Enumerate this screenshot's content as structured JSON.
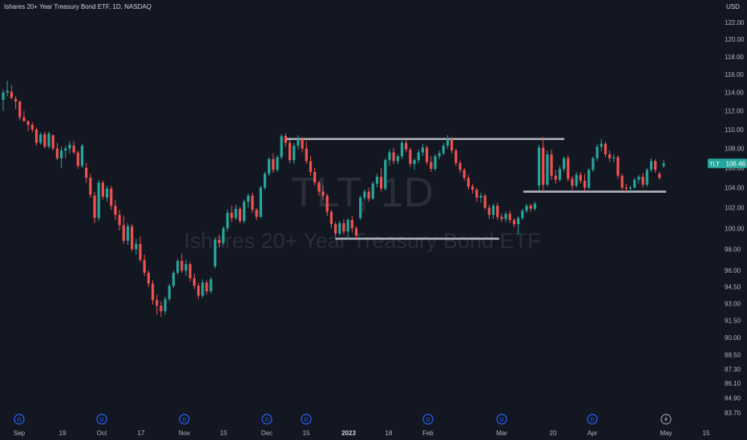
{
  "header": {
    "title": "Ishares 20+ Year Treasury Bond ETF, 1D, NASDAQ",
    "currency": "USD"
  },
  "watermark": {
    "symbol": "TLT, 1D",
    "name": "Ishares 20+ Year Treasury Bond ETF"
  },
  "price_badge": {
    "symbol": "TLT",
    "value": "106.46",
    "color": "#26a69a"
  },
  "colors": {
    "up": "#26a69a",
    "down": "#ef5350",
    "background": "#131722",
    "line": "#b2b5be",
    "event": "#2962ff"
  },
  "event_marker_label": "D",
  "chart_data": {
    "type": "candlestick",
    "y_scale": "log",
    "ylim": [
      83.3,
      123.5
    ],
    "y_ticks": [
      "122.00",
      "120.00",
      "118.00",
      "116.00",
      "114.00",
      "112.00",
      "110.00",
      "108.00",
      "106.00",
      "104.00",
      "102.00",
      "100.00",
      "98.00",
      "96.00",
      "94.50",
      "93.00",
      "91.50",
      "90.00",
      "88.50",
      "87.30",
      "86.10",
      "84.90",
      "83.70"
    ],
    "x_ticks": [
      "Sep",
      "19",
      "Oct",
      "17",
      "Nov",
      "15",
      "Dec",
      "15",
      "2023",
      "18",
      "Feb",
      "Mar",
      "20",
      "Apr",
      "May",
      "15"
    ],
    "x_ticks_bold": [
      "2023"
    ],
    "last_price": 106.46,
    "resistance_lines": [
      {
        "from": "2022-12-08",
        "to": "2023-03-24",
        "price": 109.0
      },
      {
        "from": "2022-12-28",
        "to": "2023-02-28",
        "price": 99.0
      },
      {
        "from": "2023-03-09",
        "to": "2023-05-01",
        "price": 103.6
      }
    ],
    "dividend_dates": [
      "2022-09-01",
      "2022-10-03",
      "2022-11-01",
      "2022-12-01",
      "2022-12-15",
      "2023-02-01",
      "2023-03-01",
      "2023-04-03"
    ],
    "lightning_date": "2023-05-01",
    "candles": [
      [
        113.2,
        114.3,
        112.0,
        114.0
      ],
      [
        114.0,
        115.3,
        113.6,
        114.2
      ],
      [
        114.1,
        114.8,
        113.3,
        113.4
      ],
      [
        113.3,
        113.6,
        112.2,
        113.0
      ],
      [
        113.0,
        113.1,
        111.0,
        111.3
      ],
      [
        111.3,
        112.0,
        110.8,
        110.9
      ],
      [
        110.9,
        111.0,
        109.8,
        110.5
      ],
      [
        110.5,
        110.8,
        109.7,
        110.0
      ],
      [
        110.0,
        110.2,
        108.3,
        108.6
      ],
      [
        108.6,
        109.7,
        108.4,
        109.5
      ],
      [
        109.5,
        109.8,
        108.0,
        108.2
      ],
      [
        108.2,
        109.8,
        108.0,
        109.6
      ],
      [
        109.4,
        109.5,
        107.8,
        108.0
      ],
      [
        108.0,
        108.6,
        106.8,
        107.0
      ],
      [
        107.0,
        108.2,
        106.0,
        107.8
      ],
      [
        107.8,
        108.3,
        107.0,
        108.0
      ],
      [
        108.0,
        108.8,
        107.5,
        108.4
      ],
      [
        108.3,
        108.8,
        107.4,
        107.6
      ],
      [
        107.6,
        107.8,
        105.9,
        106.2
      ],
      [
        106.2,
        108.5,
        106.0,
        108.3
      ],
      [
        106.0,
        106.5,
        104.5,
        105.0
      ],
      [
        105.0,
        105.4,
        103.0,
        103.3
      ],
      [
        103.2,
        103.6,
        100.5,
        101.0
      ],
      [
        101.0,
        104.8,
        100.7,
        104.5
      ],
      [
        104.5,
        104.7,
        102.8,
        103.1
      ],
      [
        103.0,
        104.2,
        102.6,
        103.9
      ],
      [
        103.9,
        104.2,
        101.8,
        102.2
      ],
      [
        102.2,
        102.8,
        100.8,
        101.3
      ],
      [
        101.3,
        101.8,
        99.8,
        100.3
      ],
      [
        100.3,
        101.2,
        98.5,
        98.8
      ],
      [
        98.8,
        100.5,
        98.4,
        100.2
      ],
      [
        100.2,
        100.4,
        97.8,
        98.0
      ],
      [
        98.0,
        99.0,
        97.5,
        98.5
      ],
      [
        98.5,
        99.2,
        96.8,
        97.0
      ],
      [
        97.0,
        97.5,
        95.5,
        95.8
      ],
      [
        95.8,
        96.0,
        94.5,
        94.8
      ],
      [
        94.8,
        95.1,
        92.9,
        93.3
      ],
      [
        93.3,
        93.8,
        92.0,
        92.8
      ],
      [
        92.8,
        93.2,
        91.8,
        92.3
      ],
      [
        92.3,
        93.6,
        92.0,
        93.4
      ],
      [
        93.4,
        94.8,
        93.2,
        94.6
      ],
      [
        94.6,
        96.0,
        94.4,
        95.8
      ],
      [
        95.8,
        97.1,
        95.6,
        96.9
      ],
      [
        96.9,
        97.6,
        95.8,
        96.0
      ],
      [
        96.0,
        97.0,
        95.5,
        96.6
      ],
      [
        96.6,
        96.8,
        95.0,
        95.3
      ],
      [
        95.3,
        95.7,
        94.3,
        94.6
      ],
      [
        94.6,
        94.9,
        93.4,
        93.7
      ],
      [
        93.7,
        95.2,
        93.5,
        94.9
      ],
      [
        94.9,
        95.1,
        93.8,
        94.1
      ],
      [
        94.1,
        95.4,
        93.9,
        95.2
      ],
      [
        96.4,
        99.1,
        96.2,
        98.9
      ],
      [
        98.9,
        99.4,
        98.2,
        98.6
      ],
      [
        98.6,
        100.2,
        98.4,
        100.0
      ],
      [
        100.0,
        101.8,
        99.7,
        101.5
      ],
      [
        101.5,
        102.2,
        100.6,
        101.0
      ],
      [
        101.0,
        102.3,
        100.8,
        101.9
      ],
      [
        101.9,
        102.1,
        100.5,
        100.7
      ],
      [
        100.7,
        102.8,
        100.5,
        102.6
      ],
      [
        102.6,
        103.4,
        102.0,
        103.2
      ],
      [
        103.2,
        103.5,
        101.5,
        101.8
      ],
      [
        101.8,
        102.0,
        100.8,
        101.1
      ],
      [
        101.1,
        104.2,
        101.0,
        104.0
      ],
      [
        104.0,
        105.6,
        103.8,
        105.4
      ],
      [
        105.4,
        107.1,
        105.2,
        106.9
      ],
      [
        106.9,
        107.5,
        105.5,
        105.8
      ],
      [
        105.8,
        107.3,
        105.6,
        107.1
      ],
      [
        107.1,
        109.5,
        106.9,
        109.3
      ],
      [
        109.3,
        109.6,
        108.2,
        108.6
      ],
      [
        108.6,
        108.9,
        106.5,
        106.8
      ],
      [
        106.8,
        108.6,
        106.4,
        108.3
      ],
      [
        108.3,
        109.4,
        107.9,
        109.0
      ],
      [
        109.0,
        109.2,
        107.6,
        108.0
      ],
      [
        108.0,
        108.8,
        106.4,
        106.7
      ],
      [
        106.7,
        107.2,
        105.2,
        105.6
      ],
      [
        105.6,
        106.0,
        104.2,
        104.5
      ],
      [
        104.5,
        104.7,
        103.2,
        103.6
      ],
      [
        103.6,
        104.2,
        102.8,
        103.2
      ],
      [
        103.2,
        103.4,
        101.2,
        101.6
      ],
      [
        101.6,
        101.8,
        100.0,
        100.4
      ],
      [
        100.4,
        100.6,
        99.2,
        99.5
      ],
      [
        99.5,
        100.7,
        99.3,
        100.5
      ],
      [
        100.5,
        100.9,
        99.4,
        99.7
      ],
      [
        99.7,
        101.0,
        99.0,
        100.8
      ],
      [
        100.8,
        101.2,
        99.6,
        100.0
      ],
      [
        100.0,
        100.2,
        99.0,
        99.3
      ],
      [
        101.0,
        103.2,
        100.8,
        103.0
      ],
      [
        103.0,
        103.8,
        102.7,
        103.6
      ],
      [
        103.6,
        104.0,
        102.6,
        102.9
      ],
      [
        102.9,
        104.6,
        102.8,
        104.4
      ],
      [
        104.4,
        105.4,
        104.0,
        105.1
      ],
      [
        105.1,
        106.0,
        103.6,
        103.9
      ],
      [
        103.9,
        107.0,
        103.7,
        106.8
      ],
      [
        106.8,
        107.9,
        106.2,
        107.6
      ],
      [
        107.6,
        108.1,
        106.4,
        106.7
      ],
      [
        106.7,
        107.4,
        106.4,
        107.2
      ],
      [
        107.2,
        108.8,
        106.9,
        108.6
      ],
      [
        108.6,
        108.9,
        107.6,
        107.9
      ],
      [
        107.9,
        108.1,
        106.1,
        106.4
      ],
      [
        106.4,
        107.0,
        105.8,
        106.8
      ],
      [
        106.8,
        107.9,
        106.5,
        107.6
      ],
      [
        107.6,
        108.5,
        107.2,
        108.1
      ],
      [
        108.1,
        108.3,
        106.3,
        106.6
      ],
      [
        106.6,
        107.2,
        105.6,
        105.9
      ],
      [
        105.9,
        107.4,
        105.7,
        107.2
      ],
      [
        107.2,
        107.8,
        106.9,
        107.5
      ],
      [
        107.5,
        108.6,
        107.3,
        108.3
      ],
      [
        108.3,
        109.4,
        108.0,
        109.0
      ],
      [
        109.0,
        109.2,
        107.5,
        107.8
      ],
      [
        107.8,
        108.0,
        106.2,
        106.5
      ],
      [
        106.5,
        106.8,
        105.5,
        105.8
      ],
      [
        105.8,
        106.0,
        104.7,
        105.0
      ],
      [
        105.0,
        105.3,
        103.8,
        104.1
      ],
      [
        104.1,
        104.4,
        103.4,
        103.8
      ],
      [
        103.8,
        104.0,
        102.6,
        103.0
      ],
      [
        103.0,
        103.5,
        102.5,
        103.2
      ],
      [
        103.2,
        103.4,
        101.8,
        102.0
      ],
      [
        102.0,
        102.3,
        100.9,
        101.3
      ],
      [
        101.3,
        102.4,
        100.9,
        102.2
      ],
      [
        102.2,
        102.5,
        100.8,
        101.1
      ],
      [
        101.1,
        101.4,
        100.6,
        100.9
      ],
      [
        100.9,
        101.6,
        100.6,
        101.4
      ],
      [
        101.4,
        101.7,
        100.5,
        100.8
      ],
      [
        100.8,
        101.0,
        100.1,
        100.4
      ],
      [
        100.4,
        101.2,
        99.4,
        101.0
      ],
      [
        101.0,
        101.9,
        100.8,
        101.7
      ],
      [
        101.7,
        102.4,
        101.5,
        102.2
      ],
      [
        102.2,
        102.4,
        101.6,
        101.9
      ],
      [
        101.9,
        102.6,
        101.7,
        102.4
      ],
      [
        104.2,
        108.4,
        103.7,
        108.1
      ],
      [
        108.1,
        109.2,
        103.6,
        104.3
      ],
      [
        104.3,
        107.8,
        104.1,
        107.4
      ],
      [
        107.4,
        107.9,
        104.8,
        105.2
      ],
      [
        105.2,
        105.8,
        104.4,
        104.8
      ],
      [
        104.8,
        106.2,
        104.6,
        105.9
      ],
      [
        105.9,
        107.2,
        105.6,
        107.0
      ],
      [
        107.0,
        107.3,
        104.6,
        104.9
      ],
      [
        104.9,
        105.2,
        103.8,
        104.2
      ],
      [
        104.2,
        105.6,
        104.0,
        105.3
      ],
      [
        105.3,
        105.6,
        104.4,
        104.7
      ],
      [
        104.7,
        105.4,
        103.6,
        104.0
      ],
      [
        104.0,
        106.0,
        103.8,
        105.8
      ],
      [
        105.8,
        107.2,
        105.6,
        107.0
      ],
      [
        107.0,
        108.5,
        106.7,
        108.2
      ],
      [
        108.2,
        109.0,
        107.7,
        108.5
      ],
      [
        108.5,
        108.7,
        107.1,
        107.4
      ],
      [
        107.4,
        107.8,
        106.6,
        107.0
      ],
      [
        107.0,
        107.4,
        106.6,
        107.1
      ],
      [
        107.1,
        107.3,
        104.9,
        105.2
      ],
      [
        105.2,
        105.4,
        103.8,
        104.0
      ],
      [
        104.0,
        104.4,
        103.5,
        103.9
      ],
      [
        103.9,
        104.2,
        103.6,
        104.0
      ],
      [
        104.0,
        105.0,
        103.9,
        104.8
      ],
      [
        104.8,
        105.3,
        104.4,
        105.1
      ],
      [
        105.1,
        105.5,
        104.0,
        104.3
      ],
      [
        104.3,
        106.0,
        104.1,
        105.8
      ],
      [
        105.8,
        107.0,
        105.6,
        106.7
      ],
      [
        106.7,
        106.9,
        105.5,
        105.8
      ],
      [
        105.4,
        105.6,
        104.8,
        105.0
      ],
      [
        106.2,
        106.8,
        106.0,
        106.46
      ]
    ]
  }
}
